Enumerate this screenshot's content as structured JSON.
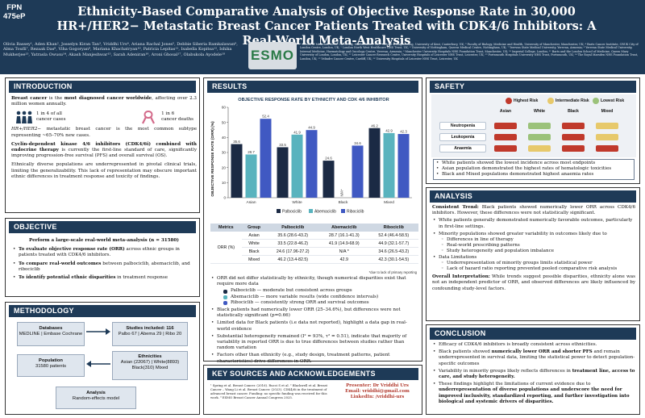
{
  "header": {
    "fpn_line1": "FPN",
    "fpn_line2": "475eP",
    "title": "Ethnicity-Based Comparative Analysis of Objective Response Rate in 30,000 HR+/HER2− Metastatic Breast Cancer Patients Treated with CDK4/6 Inhibitors: A Real-World Meta-Analysis",
    "authors": "Olivia Bassey¹, Aden Khan², Josselyn Kiran Tan³, Vriddhi Urs⁴, Ariana Rachal Jones⁵, Debbie Siberia Ramkalawan⁶, Alma Toufli⁷, Rezaak Das⁸, Viha Gogoryan⁹, Mariana Khachatryan¹⁰, Patricia Lepitas¹¹, Isabella Kopitsa¹², Ishika Mukherjee¹³, Yatrasla Owusu¹⁴, Akash Manjeshwar¹⁵, Sarah Adeniran¹⁶, Aroni Ghosal¹⁷, Olabukola Ayodele¹⁸",
    "logo_text": "ESMO",
    "affiliations": "¹ School of Medicine, Keele University, Staffordshire, UK; ² School of Engineering, University of Kent, Canterbury, UK; ³ Faculty of Biology, Medicine and Health, University of Manchester, Manchester, UK; ⁴ Barts Cancer Institute, CRUK City of London Centre, London, UK; ⁵ London North West Healthcare NHS Trust, UK; ⁶ University of Nottingham, Queens Medical Centre, Nottingham, UK; ⁷ Yerevan State Medical University, Yerevan, Armenia; ⁸ Yerevan State Medical University, Internal Medicine, Haematology and Oncology Centre, Yerevan, Armenia; ⁹ Manchester University Hospitals NHS Foundation Trust, Manchester, UK; ¹⁰ Imperial College, London; ¹¹ Barts and the London School of Medicine, Queen Mary University of London, London, UK; ¹² Leicester Cancer Research Centre, University Hospitals of Leicester NHS Trust, Leicester, UK; ¹³ Portsmouth Hospitals University NHS Trust, Portsmouth, UK; ¹⁴ The Royal Marsden NHS Foundation Trust, London, UK; ¹⁵ Velindre Cancer Centre, Cardiff, UK; ¹⁶ University Hospitals of Leicester NHS Trust, Leicester, UK"
  },
  "introduction": {
    "heading": "INTRODUCTION",
    "p1_bold": "Breast cancer",
    "p1_mid": " is the ",
    "p1_bold2": "most diagnosed cancer worldwide",
    "p1_rest": ", affecting over 2.3 million women annually.",
    "stat1_value": "1 in 4 of all",
    "stat1_sub": "cancer cases",
    "stat2_value": "1 in 6",
    "stat2_sub": "cancer deaths",
    "p2_italic": "HR+/HER2−",
    "p2_rest": " metastatic breast cancer is the most common subtype representing ~65–70% new cases.",
    "p3_bold": "Cyclin-dependent kinase 4/6 inhibitors (CDK4/6i) combined with endocrine therapy",
    "p3_rest": " is currently the first-line standard of care, significantly improving progression-free survival (PFS) and overall survival (OS).",
    "p4": "Ethnically diverse populations are underrepresented in pivotal clinical trials, limiting the generalizability. This lack of representation may obscure important ethnic differences in treatment response and toxicity of findings."
  },
  "objective": {
    "heading": "OBJECTIVE",
    "lead": "Perform a large-scale real-world meta-analysis (n = 31580)",
    "items": [
      {
        "bold": "To evaluate objective response rate (ORR)",
        "rest": " across ethnic groups in patients treated with CDK4/6 inhibitors."
      },
      {
        "bold": "To compare real-world outcomes",
        "rest": " between palbociclib, abemaciclib, and ribociclib"
      },
      {
        "bold": "To identify potential ethnic disparities",
        "rest": " in treatment response"
      }
    ]
  },
  "methodology": {
    "heading": "METHODOLOGY",
    "databases_title": "Databases",
    "databases_text": "MEDLINE | Embase Cochrane",
    "studies_title": "Studies included: 116",
    "studies_text": "Palbo 67 | Abema 29 | Ribo 20",
    "population_title": "Population",
    "population_text": "31580 patients",
    "ethnicities_title": "Ethnicities",
    "ethnicities_text": "Asian (22067) | White(8893) Black(310) Mixed",
    "analysis_title": "Analysis",
    "analysis_text": "Random-effects model"
  },
  "results": {
    "heading": "RESULTS",
    "chart_title": "OBJECTIVE RESPONSE RATE BY ETHNICITY AND CDK 4/6 INHIBITOR",
    "table_headers": [
      "Metrics",
      "Group",
      "Palbociclib",
      "Abemaciclib",
      "Ribociclib"
    ],
    "table_metric": "ORR (%)",
    "table_rows": [
      [
        "Asian",
        "35.6 (28.6-43.2)",
        "28.7 (16.1-41.3)",
        "52.4 (46.4-58.5)"
      ],
      [
        "White",
        "33.5 (22.8-46.2)",
        "41.9 (14.9-68.9)",
        "44.9 (32.1-57.7)"
      ],
      [
        "Black",
        "24.6 (17.96-27.2)",
        "N/A *",
        "34.6 (26.5-43.2)"
      ],
      [
        "Mixed",
        "46.2 (13.4-82.5)",
        "42.9",
        "42.3 (30.1-54.5)"
      ]
    ],
    "table_note": "*due to lack of primary reporting",
    "b1": "ORR did not differ statistically by ethnicity, though numerical disparities exist that require more data",
    "b1_subs": [
      "Palbociclib — moderate but consistent across groups",
      "Abemaciclib — more variable results (wide confidence intervals)",
      "Ribociclib — consistently strong ORR and survival outcomes"
    ],
    "b2": "Black patients had numerically lower ORR (25–34.6%), but differences were not statistically significant (p=0.66)",
    "b3": "Limited data for Black patients (i.e data not reported), highlight a data gap in real-world evidence",
    "b4": "Substantial heterogeneity remained (I² = 93%, τ² = 0.51), indicate that majority of variability in reported ORR is due to true differences between studies rather than random variation",
    "b5": "Factors other than ethnicity (e.g., study design, treatment patterns, patient characteristics) drive differences in ORR."
  },
  "chart_data": {
    "type": "bar",
    "title": "OBJECTIVE RESPONSE RATE BY ETHNICITY AND CDK 4/6 INHIBITOR",
    "ylabel": "OBJECTIVE RESPONSE RATE (ORR) (%)",
    "xlabel": "",
    "ylim": [
      0,
      60
    ],
    "yticks": [
      0,
      10,
      20,
      30,
      40,
      50,
      60
    ],
    "categories": [
      "Asian",
      "White",
      "Black",
      "Mixed"
    ],
    "series": [
      {
        "name": "Palbociclib",
        "values": [
          35.6,
          33.5,
          24.6,
          46.2
        ],
        "color": "#1b2a44"
      },
      {
        "name": "Abemaciclib",
        "values": [
          28.7,
          41.9,
          null,
          42.9
        ],
        "color": "#59b3be"
      },
      {
        "name": "Ribociclib",
        "values": [
          52.4,
          44.9,
          34.6,
          42.3
        ],
        "color": "#4059c2"
      }
    ],
    "missing_label": "N/A*",
    "legend": "bottom",
    "grid": false
  },
  "safety": {
    "heading": "SAFETY",
    "legend": [
      {
        "label": "Highest Risk",
        "color": "#c0392b"
      },
      {
        "label": "Intermediate Risk",
        "color": "#e7c96b"
      },
      {
        "label": "Lowest Risk",
        "color": "#9bc27a"
      }
    ],
    "columns": [
      "Asian",
      "White",
      "Black",
      "Mixed"
    ],
    "rows": [
      {
        "label": "Neutropenia",
        "colors": [
          "#c0392b",
          "#9bc27a",
          "#c0392b",
          "#e7c96b"
        ]
      },
      {
        "label": "Leukopenia",
        "colors": [
          "#c0392b",
          "#9bc27a",
          "#c0392b",
          "#e7c96b"
        ]
      },
      {
        "label": "Anaemia",
        "colors": [
          "#c0392b",
          "#e7c96b",
          "#c0392b",
          "#c0392b"
        ]
      }
    ],
    "bullets": [
      "White patients showed the lowest incidence across most endpoints",
      "Asian population demonstrated the highest rates of hematologic toxicities",
      "Black and Mixed populations demonstrated highest anaemia rates"
    ]
  },
  "analysis": {
    "heading": "ANALYSIS",
    "p1_bold": "Consistent Trend:",
    "p1_rest": " Black patients showed numerically lower ORR across CDK4/6 inhibitors. However, these differences were not statistically significant.",
    "b1": "White patients generally demonstrated numerically favorable outcomes, particularly in first-line settings.",
    "b2": "Minority populations showed greater variability in outcomes likely due to",
    "b2_subs": [
      "Differences in line of therapy",
      "Real-world prescribing patterns",
      "Study heterogeneity and population imbalance"
    ],
    "b3": "Data Limitations",
    "b3_subs": [
      "Underrepresentation of minority groups limits statistical power",
      "Lack of hazard ratio reporting prevented pooled comparative risk analysis"
    ],
    "p2_bold": "Overall Interpretation:",
    "p2_rest": " While trends suggest possible disparities, ethnicity alone was not an independent predictor of ORR, and observed differences are likely influenced by confounding study-level factors."
  },
  "conclusion": {
    "heading": "CONCLUSION",
    "items": [
      {
        "pre": "Efficacy of CDK4/6 inhibitors is broadly consistent across ethnicities.",
        "bold": "",
        "post": ""
      },
      {
        "pre": "Black patients showed ",
        "bold": "numerically lower ORR and shorter PFS",
        "post": " and remain underrepresented in survival data, limiting the statistical power to detect population-specific outcomes"
      },
      {
        "pre": "Variability in minority groups likely reflects differences in ",
        "bold": "treatment line, access to care, and study heterogeneity.",
        "post": ""
      },
      {
        "pre": "These findings highlight the limitations of current evidence due to ",
        "bold": "underrepresentation of diverse populations and underscore the need for improved inclusivity, standardized reporting, and further investigation into biological and systemic drivers of disparities.",
        "post": ""
      }
    ]
  },
  "sources": {
    "heading": "KEY SOURCES AND ACKNOWLEDGEMENTS",
    "text": "¹ Spring et al. Breast Cancer. (2016). Rucci S et al. ² Blackwell et al. Breast Cancer – Wang Li et al. Breast Cancer. (2023). CDK4/6i in the treatment of advanced breast cancer. Funding: no specific funding was received for this work. ³ ESMO Breast Cancer Annual Congress 2025.",
    "presenter": "Presenter: Dr Vriddhi Urs",
    "email": "Email: vriddhi@gmail.com",
    "linkedin": "LinkedIn: /vriddhi-urs"
  }
}
